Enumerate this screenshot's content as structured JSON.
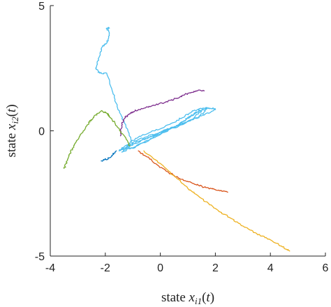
{
  "chart_data": {
    "type": "line",
    "title": "",
    "xlabel": "state x_{i1}(t)",
    "ylabel": "state x_{i2}(t)",
    "xlim": [
      -4,
      6
    ],
    "ylim": [
      -5,
      5
    ],
    "xticks": [
      "-4",
      "-2",
      "0",
      "2",
      "4",
      "6"
    ],
    "yticks": [
      "5",
      "0",
      "-5"
    ],
    "grid": false,
    "legend": "none",
    "series": [
      {
        "color": "#4DBEEE",
        "x": [
          -1.0,
          -1.3,
          -1.55,
          -1.75,
          -1.95,
          -2.2,
          -2.35,
          -2.2,
          -2.1,
          -1.95,
          -1.85,
          -1.95,
          -1.85
        ],
        "y": [
          -0.5,
          0.3,
          0.9,
          1.6,
          2.3,
          2.3,
          2.5,
          3.0,
          3.4,
          3.5,
          3.9,
          4.1,
          4.1
        ]
      },
      {
        "color": "#4DBEEE",
        "x": [
          -1.5,
          -0.9,
          -0.2,
          0.4,
          0.9,
          1.2,
          1.6,
          1.9,
          2.0,
          1.5,
          0.9,
          0.2,
          -0.5,
          -1.2,
          -1.4,
          -0.7,
          0.0,
          0.6,
          1.0,
          1.3,
          1.7,
          1.4,
          0.7,
          0.0,
          -0.8,
          -1.4,
          -1.0,
          -0.3,
          0.3,
          0.8,
          1.1,
          1.5,
          1.1,
          0.4,
          -0.4,
          -1.1,
          -1.5
        ],
        "y": [
          -0.8,
          -0.3,
          0.0,
          0.3,
          0.6,
          0.8,
          0.9,
          0.9,
          0.85,
          0.6,
          0.3,
          0.0,
          -0.3,
          -0.6,
          -0.85,
          -0.5,
          -0.15,
          0.2,
          0.5,
          0.75,
          0.9,
          0.55,
          0.25,
          -0.05,
          -0.35,
          -0.75,
          -0.7,
          -0.3,
          0.05,
          0.35,
          0.6,
          0.8,
          0.4,
          0.1,
          -0.25,
          -0.6,
          -0.8
        ]
      },
      {
        "color": "#0072BD",
        "x": [
          -2.15,
          -2.0,
          -1.8,
          -1.6
        ],
        "y": [
          -1.2,
          -1.15,
          -1.05,
          -0.8
        ]
      },
      {
        "color": "#7E2F8E",
        "x": [
          -1.45,
          -1.4,
          -1.3,
          -1.1,
          -0.8,
          -0.3,
          0.2,
          0.6,
          1.0,
          1.3,
          1.6
        ],
        "y": [
          -0.2,
          0.3,
          0.5,
          0.7,
          0.85,
          1.0,
          1.15,
          1.3,
          1.5,
          1.6,
          1.6
        ]
      },
      {
        "color": "#77AC30",
        "x": [
          -1.1,
          -1.4,
          -1.65,
          -1.85,
          -1.95,
          -2.15,
          -2.4,
          -2.6,
          -2.8,
          -3.05,
          -3.2,
          -3.35,
          -3.5
        ],
        "y": [
          -0.6,
          -0.1,
          0.3,
          0.6,
          0.7,
          0.8,
          0.6,
          0.3,
          0.0,
          -0.4,
          -0.7,
          -1.1,
          -1.5
        ]
      },
      {
        "color": "#D95319",
        "x": [
          -0.8,
          -0.3,
          0.2,
          0.7,
          1.2,
          1.6,
          2.0,
          2.45
        ],
        "y": [
          -0.8,
          -1.2,
          -1.6,
          -1.9,
          -2.1,
          -2.25,
          -2.35,
          -2.45
        ]
      },
      {
        "color": "#EDB120",
        "x": [
          -0.6,
          0.0,
          0.5,
          1.0,
          1.5,
          2.0,
          2.5,
          3.0,
          3.5,
          4.0,
          4.4,
          4.7
        ],
        "y": [
          -0.8,
          -1.3,
          -1.8,
          -2.3,
          -2.7,
          -3.1,
          -3.45,
          -3.8,
          -4.1,
          -4.35,
          -4.6,
          -4.8
        ]
      }
    ]
  }
}
